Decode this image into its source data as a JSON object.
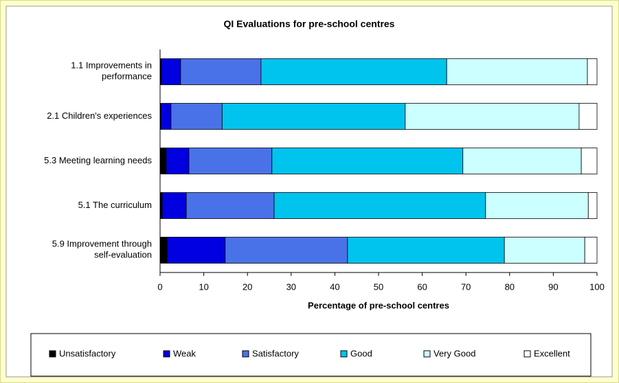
{
  "chart_data": {
    "type": "stacked-bar-horizontal",
    "title": "QI Evaluations for pre-school centres",
    "xlabel": "Percentage of pre-school centres",
    "categories": [
      "1.1 Improvements in\nperformance",
      "2.1 Children's experiences",
      "5.3 Meeting learning needs",
      "5.1 The curriculum",
      "5.9  Improvement through\nself-evaluation"
    ],
    "series": [
      {
        "name": "Unsatisfactory",
        "color": "#000000",
        "values": [
          0.3,
          0.2,
          1.4,
          0.5,
          1.6
        ]
      },
      {
        "name": "Weak",
        "color": "#0000e0",
        "values": [
          4.4,
          2.3,
          5.2,
          5.5,
          13.3
        ]
      },
      {
        "name": "Satisfactory",
        "color": "#4a72e8",
        "values": [
          18.4,
          11.7,
          19.0,
          20.1,
          28.0
        ]
      },
      {
        "name": "Good",
        "color": "#00c4ee",
        "values": [
          42.5,
          41.9,
          43.7,
          48.4,
          35.9
        ]
      },
      {
        "name": "Very Good",
        "color": "#ccffff",
        "values": [
          32.2,
          39.8,
          27.1,
          23.5,
          18.4
        ]
      },
      {
        "name": "Excellent",
        "color": "#ffffff",
        "values": [
          2.2,
          4.1,
          3.6,
          2.0,
          2.8
        ]
      }
    ],
    "xlim": [
      0,
      100
    ],
    "xticks": [
      0,
      10,
      20,
      30,
      40,
      50,
      60,
      70,
      80,
      90,
      100
    ],
    "legend": "bottom",
    "grid": false
  }
}
